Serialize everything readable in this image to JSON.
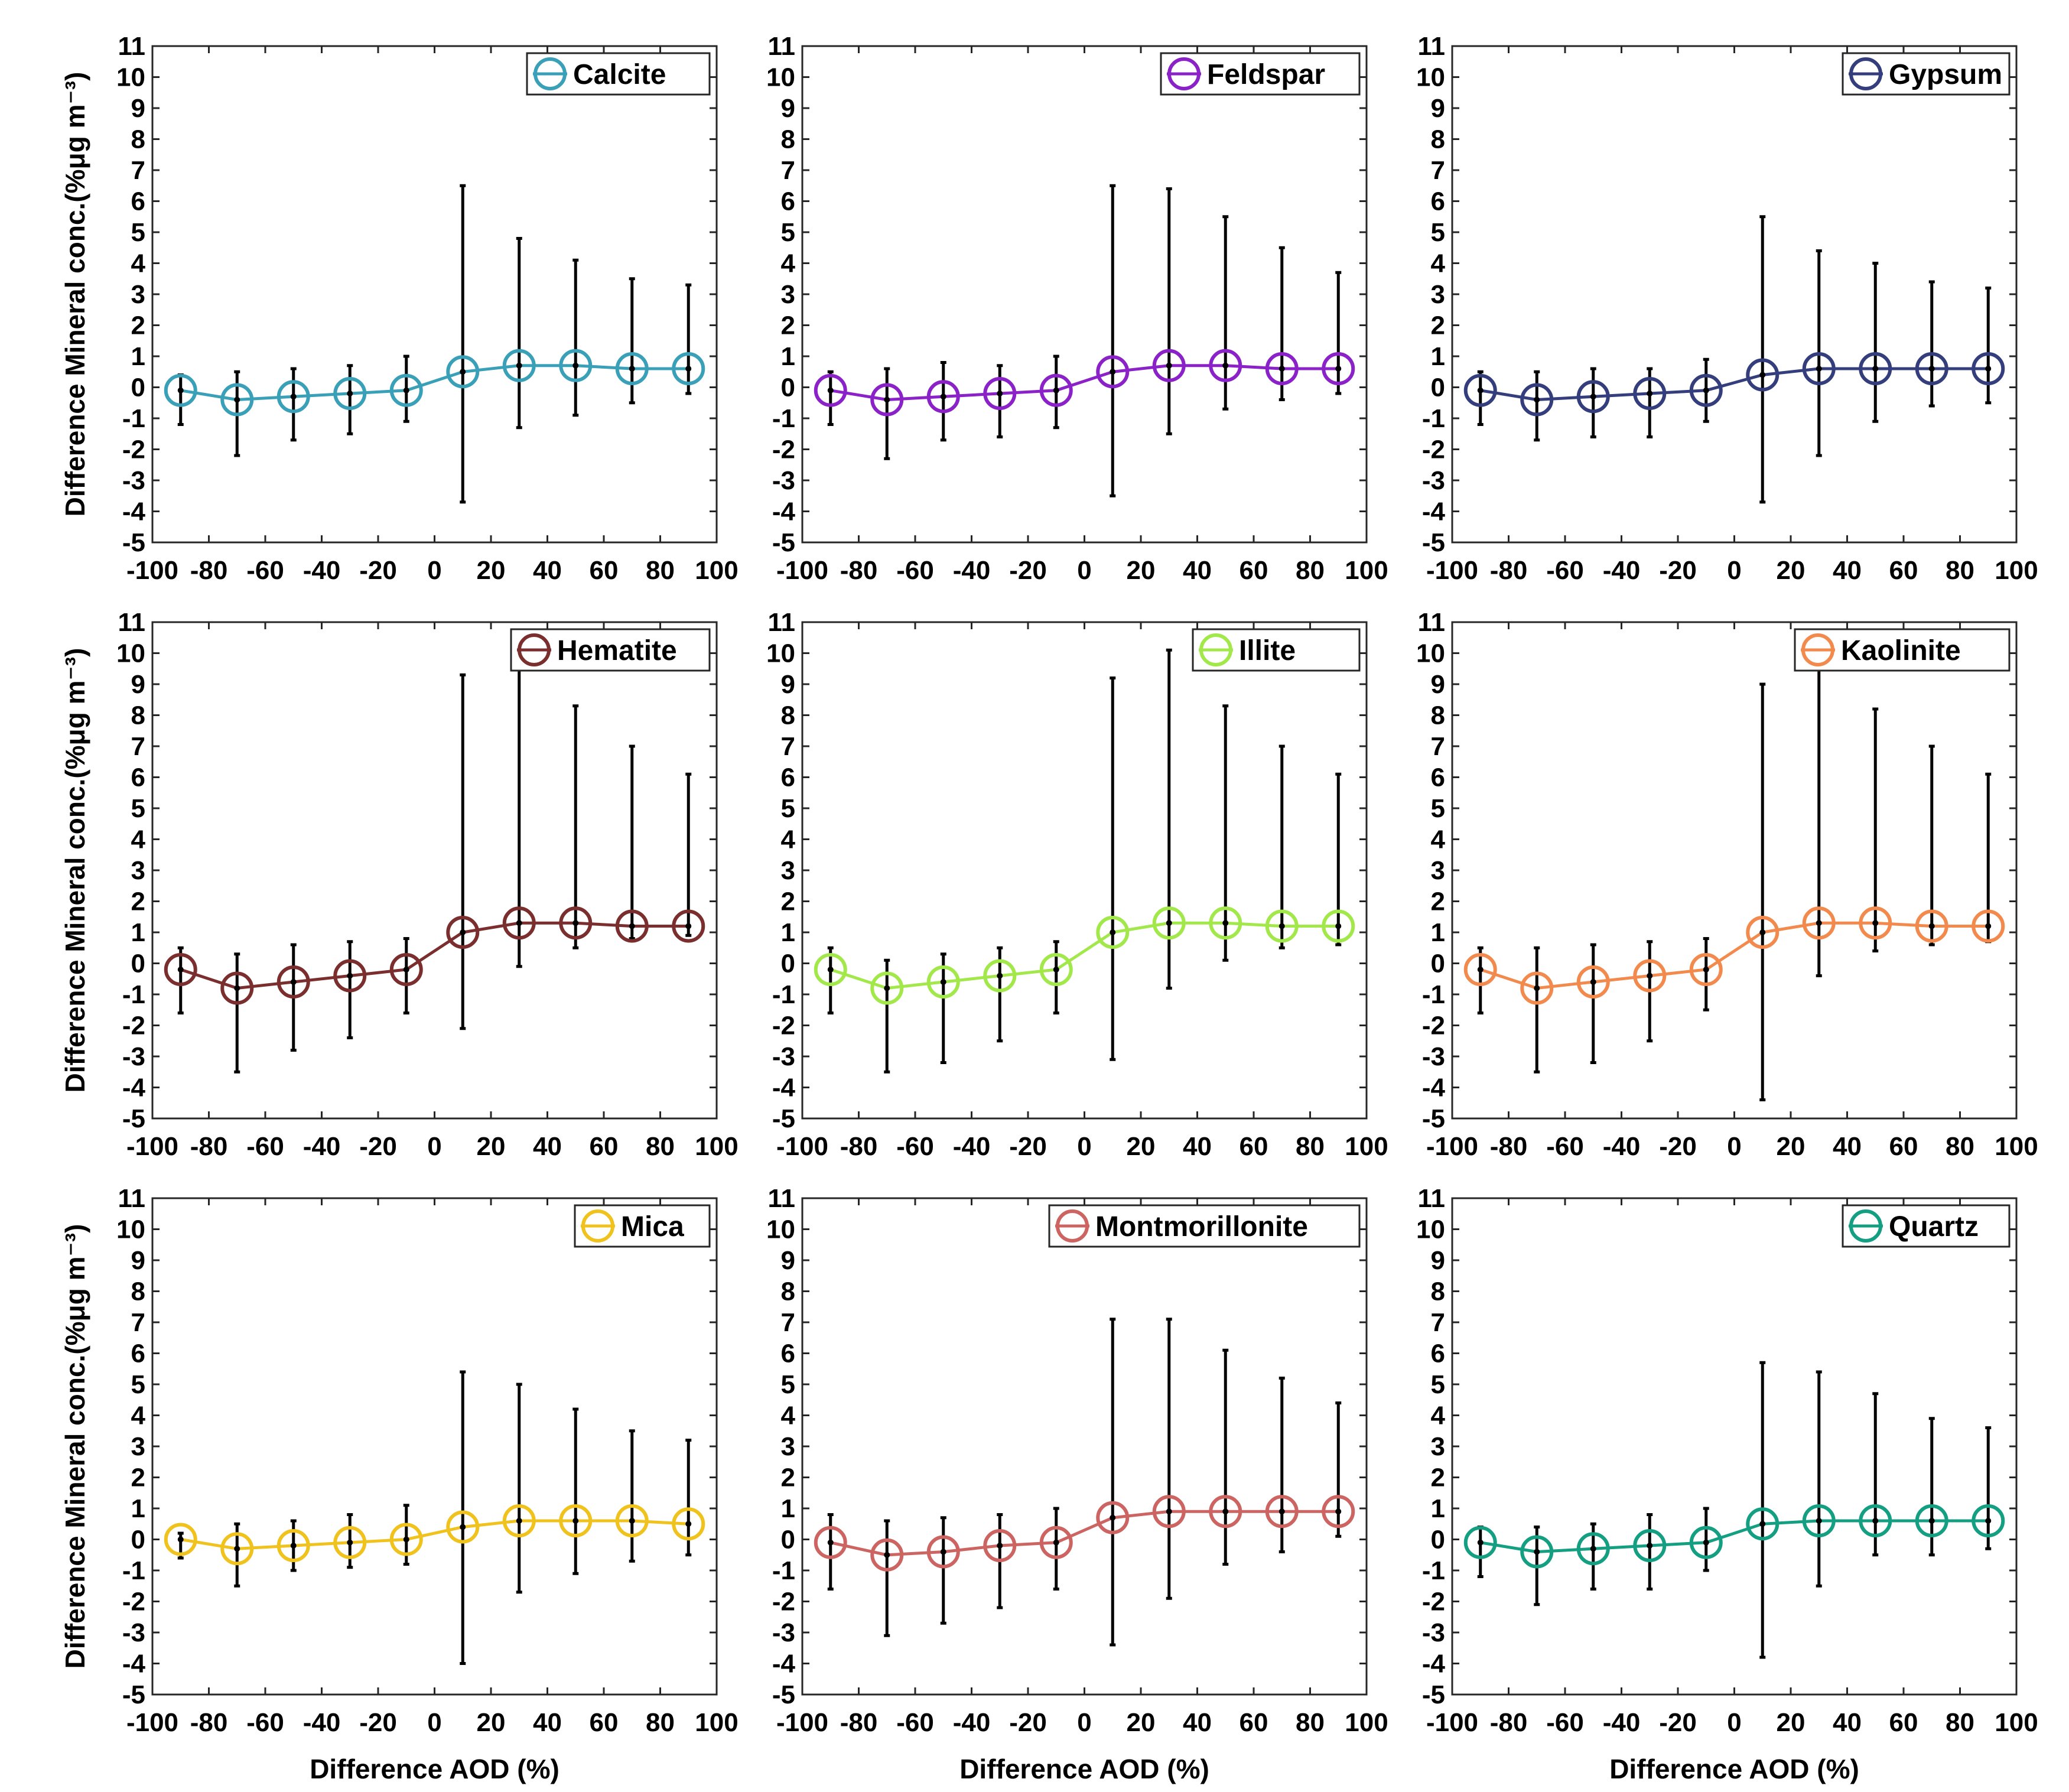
{
  "chart_data": {
    "type": "line",
    "x": [
      -90,
      -70,
      -50,
      -30,
      -10,
      10,
      30,
      50,
      70,
      90
    ],
    "xlim": [
      -100,
      100
    ],
    "ylim": [
      -5,
      11
    ],
    "xticks": [
      -100,
      -80,
      -60,
      -40,
      -20,
      0,
      20,
      40,
      60,
      80,
      100
    ],
    "yticks": [
      -5,
      -4,
      -3,
      -2,
      -1,
      0,
      1,
      2,
      3,
      4,
      5,
      6,
      7,
      8,
      9,
      10,
      11
    ],
    "xtick_labels": [
      "-100",
      "-80",
      "-60",
      "-40",
      "-20",
      "0",
      "20",
      "40",
      "60",
      "80",
      "100"
    ],
    "ytick_labels": [
      "-5",
      "-4",
      "-3",
      "-2",
      "-1",
      "0",
      "1",
      "2",
      "3",
      "4",
      "5",
      "6",
      "7",
      "8",
      "9",
      "10",
      "11"
    ],
    "xlabel": "Difference AOD (%)",
    "ylabel": "Difference Mineral conc.(%μg m⁻³)",
    "legend_position": "top-right",
    "panels": [
      {
        "name": "Calcite",
        "color": "#3aa0b8",
        "values": [
          -0.1,
          -0.4,
          -0.3,
          -0.2,
          -0.1,
          0.5,
          0.7,
          0.7,
          0.6,
          0.6
        ],
        "err_low": [
          -1.2,
          -2.2,
          -1.7,
          -1.5,
          -1.1,
          -3.7,
          -1.3,
          -0.9,
          -0.5,
          -0.2
        ],
        "err_high": [
          0.4,
          0.5,
          0.6,
          0.7,
          1.0,
          6.5,
          4.8,
          4.1,
          3.5,
          3.3
        ]
      },
      {
        "name": "Feldspar",
        "color": "#8a22c8",
        "values": [
          -0.1,
          -0.4,
          -0.3,
          -0.2,
          -0.1,
          0.5,
          0.7,
          0.7,
          0.6,
          0.6
        ],
        "err_low": [
          -1.2,
          -2.3,
          -1.7,
          -1.6,
          -1.3,
          -3.5,
          -1.5,
          -0.7,
          -0.4,
          -0.2
        ],
        "err_high": [
          0.5,
          0.6,
          0.8,
          0.7,
          1.0,
          6.5,
          6.4,
          5.5,
          4.5,
          3.7
        ]
      },
      {
        "name": "Gypsum",
        "color": "#343e7c",
        "values": [
          -0.1,
          -0.4,
          -0.3,
          -0.2,
          -0.1,
          0.4,
          0.6,
          0.6,
          0.6,
          0.6
        ],
        "err_low": [
          -1.2,
          -1.7,
          -1.6,
          -1.6,
          -1.1,
          -3.7,
          -2.2,
          -1.1,
          -0.6,
          -0.5
        ],
        "err_high": [
          0.5,
          0.5,
          0.6,
          0.6,
          0.9,
          5.5,
          4.4,
          4.0,
          3.4,
          3.2
        ]
      },
      {
        "name": "Hematite",
        "color": "#7a2e2e",
        "values": [
          -0.2,
          -0.8,
          -0.6,
          -0.4,
          -0.2,
          1.0,
          1.3,
          1.3,
          1.2,
          1.2
        ],
        "err_low": [
          -1.6,
          -3.5,
          -2.8,
          -2.4,
          -1.6,
          -2.1,
          -0.1,
          0.5,
          0.8,
          0.9
        ],
        "err_high": [
          0.5,
          0.3,
          0.6,
          0.7,
          0.8,
          9.3,
          10.1,
          8.3,
          7.0,
          6.1
        ]
      },
      {
        "name": "Illite",
        "color": "#a2e84a",
        "values": [
          -0.2,
          -0.8,
          -0.6,
          -0.4,
          -0.2,
          1.0,
          1.3,
          1.3,
          1.2,
          1.2
        ],
        "err_low": [
          -1.6,
          -3.5,
          -3.2,
          -2.5,
          -1.6,
          -3.1,
          -0.8,
          0.1,
          0.5,
          0.6
        ],
        "err_high": [
          0.5,
          0.1,
          0.3,
          0.5,
          0.7,
          9.2,
          10.1,
          8.3,
          7.0,
          6.1
        ]
      },
      {
        "name": "Kaolinite",
        "color": "#f28a4e",
        "values": [
          -0.2,
          -0.8,
          -0.6,
          -0.4,
          -0.2,
          1.0,
          1.3,
          1.3,
          1.2,
          1.2
        ],
        "err_low": [
          -1.6,
          -3.5,
          -3.2,
          -2.5,
          -1.5,
          -4.4,
          -0.4,
          0.4,
          0.6,
          0.7
        ],
        "err_high": [
          0.5,
          0.5,
          0.6,
          0.7,
          0.8,
          9.0,
          10.1,
          8.2,
          7.0,
          6.1
        ]
      },
      {
        "name": "Mica",
        "color": "#f0c21e",
        "values": [
          0.0,
          -0.3,
          -0.2,
          -0.1,
          0.0,
          0.4,
          0.6,
          0.6,
          0.6,
          0.5
        ],
        "err_low": [
          -0.6,
          -1.5,
          -1.0,
          -0.9,
          -0.8,
          -4.0,
          -1.7,
          -1.1,
          -0.7,
          -0.5
        ],
        "err_high": [
          0.2,
          0.5,
          0.6,
          0.8,
          1.1,
          5.4,
          5.0,
          4.2,
          3.5,
          3.2
        ]
      },
      {
        "name": "Montmorillonite",
        "color": "#cc6462",
        "values": [
          -0.1,
          -0.5,
          -0.4,
          -0.2,
          -0.1,
          0.7,
          0.9,
          0.9,
          0.9,
          0.9
        ],
        "err_low": [
          -1.6,
          -3.1,
          -2.7,
          -2.2,
          -1.6,
          -3.4,
          -1.9,
          -0.8,
          -0.4,
          0.1
        ],
        "err_high": [
          0.8,
          0.6,
          0.7,
          0.8,
          1.0,
          7.1,
          7.1,
          6.1,
          5.2,
          4.4
        ]
      },
      {
        "name": "Quartz",
        "color": "#149e82",
        "values": [
          -0.1,
          -0.4,
          -0.3,
          -0.2,
          -0.1,
          0.5,
          0.6,
          0.6,
          0.6,
          0.6
        ],
        "err_low": [
          -1.2,
          -2.1,
          -1.6,
          -1.6,
          -1.0,
          -3.8,
          -1.5,
          -0.5,
          -0.5,
          -0.3
        ],
        "err_high": [
          0.4,
          0.4,
          0.5,
          0.8,
          1.0,
          5.7,
          5.4,
          4.7,
          3.9,
          3.6
        ]
      }
    ]
  }
}
